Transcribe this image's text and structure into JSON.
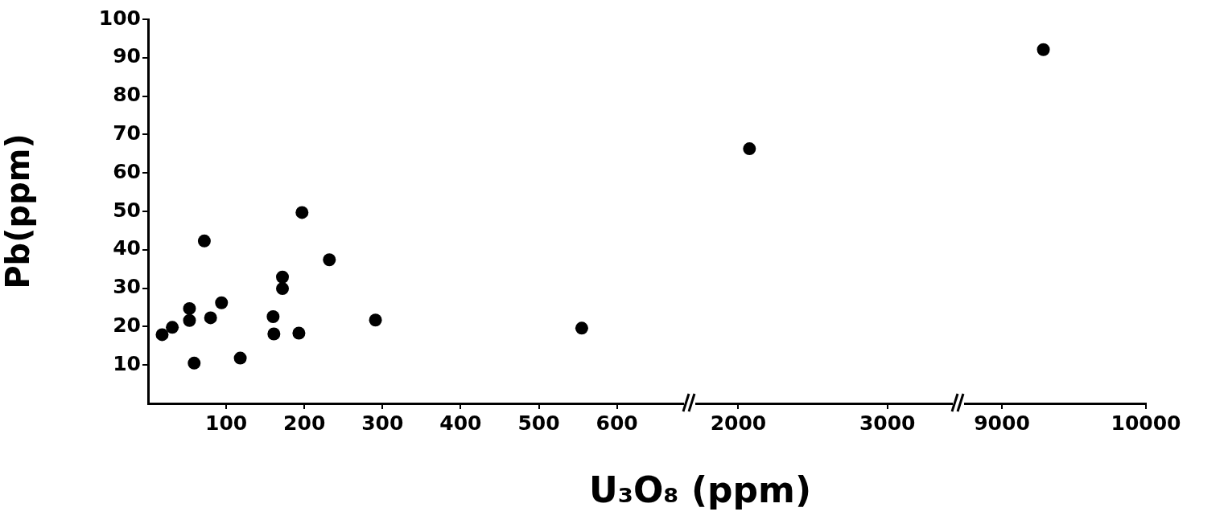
{
  "chart_data": [
    {
      "type": "scatter",
      "ylabel": "Pb(ppm)",
      "marker": "circle",
      "grid": false,
      "xlim": [
        0,
        690
      ],
      "xticks": [
        100,
        200,
        300,
        400,
        500,
        600
      ],
      "ylim": [
        0,
        100
      ],
      "yticks": [
        10,
        20,
        30,
        40,
        50,
        60,
        70,
        80,
        90,
        100
      ],
      "series": [
        {
          "color": "#000000",
          "x": [
            18,
            31,
            53,
            53,
            59,
            72,
            80,
            94,
            118,
            160,
            161,
            172,
            172,
            193,
            197,
            232,
            291,
            555
          ],
          "values": [
            17.9,
            19.8,
            24.7,
            21.6,
            10.5,
            42.3,
            22.3,
            26.2,
            11.8,
            22.6,
            18.1,
            32.9,
            29.9,
            18.3,
            49.7,
            37.4,
            21.7,
            19.6
          ]
        }
      ]
    },
    {
      "type": "scatter",
      "xlabel": "U₃O₈ (ppm)",
      "marker": "circle",
      "grid": false,
      "xlim": [
        1717,
        3466
      ],
      "xticks": [
        2000,
        3000
      ],
      "ylim": [
        0,
        100
      ],
      "tick_labels": "x",
      "series": [
        {
          "color": "#000000",
          "x": [
            2075
          ],
          "values": [
            66.3
          ]
        }
      ]
    },
    {
      "type": "scatter",
      "marker": "circle",
      "grid": false,
      "xlim": [
        8743,
        10000
      ],
      "xticks": [
        9000,
        10000
      ],
      "ylim": [
        0,
        100
      ],
      "tick_labels": "x",
      "series": [
        {
          "color": "#000000",
          "x": [
            9288
          ],
          "values": [
            92.1
          ]
        }
      ]
    }
  ]
}
